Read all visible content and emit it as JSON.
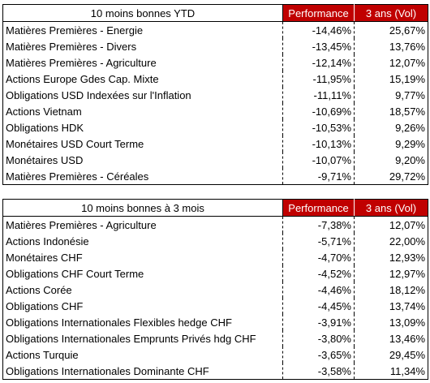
{
  "tables": [
    {
      "title": "10 moins bonnes YTD",
      "col_perf": "Performance",
      "col_vol": "3 ans (Vol)",
      "rows": [
        {
          "name": "Matières Premières - Energie",
          "perf": "-14,46%",
          "vol": "25,67%"
        },
        {
          "name": "Matières Premières - Divers",
          "perf": "-13,45%",
          "vol": "13,76%"
        },
        {
          "name": "Matières Premières - Agriculture",
          "perf": "-12,14%",
          "vol": "12,07%"
        },
        {
          "name": "Actions Europe Gdes Cap. Mixte",
          "perf": "-11,95%",
          "vol": "15,19%"
        },
        {
          "name": "Obligations USD Indexées sur l'Inflation",
          "perf": "-11,11%",
          "vol": "9,77%"
        },
        {
          "name": "Actions Vietnam",
          "perf": "-10,69%",
          "vol": "18,57%"
        },
        {
          "name": "Obligations HDK",
          "perf": "-10,53%",
          "vol": "9,26%"
        },
        {
          "name": "Monétaires USD Court Terme",
          "perf": "-10,13%",
          "vol": "9,29%"
        },
        {
          "name": "Monétaires USD",
          "perf": "-10,07%",
          "vol": "9,20%"
        },
        {
          "name": "Matières Premières - Céréales",
          "perf": "-9,71%",
          "vol": "29,72%"
        }
      ]
    },
    {
      "title": "10 moins bonnes à 3 mois",
      "col_perf": "Performance",
      "col_vol": "3 ans (Vol)",
      "rows": [
        {
          "name": "Matières Premières - Agriculture",
          "perf": "-7,38%",
          "vol": "12,07%"
        },
        {
          "name": "Actions Indonésie",
          "perf": "-5,71%",
          "vol": "22,00%"
        },
        {
          "name": "Monétaires CHF",
          "perf": "-4,70%",
          "vol": "12,93%"
        },
        {
          "name": "Obligations CHF Court Terme",
          "perf": "-4,52%",
          "vol": "12,97%"
        },
        {
          "name": "Actions Corée",
          "perf": "-4,46%",
          "vol": "18,12%"
        },
        {
          "name": "Obligations CHF",
          "perf": "-4,45%",
          "vol": "13,74%"
        },
        {
          "name": "Obligations Internationales Flexibles hedge CHF",
          "perf": "-3,91%",
          "vol": "13,09%"
        },
        {
          "name": "Obligations Internationales Emprunts Privés hdg CHF",
          "perf": "-3,80%",
          "vol": "13,46%"
        },
        {
          "name": "Actions Turquie",
          "perf": "-3,65%",
          "vol": "29,45%"
        },
        {
          "name": "Obligations Internationales Dominante CHF",
          "perf": "-3,58%",
          "vol": "11,34%"
        }
      ]
    }
  ]
}
